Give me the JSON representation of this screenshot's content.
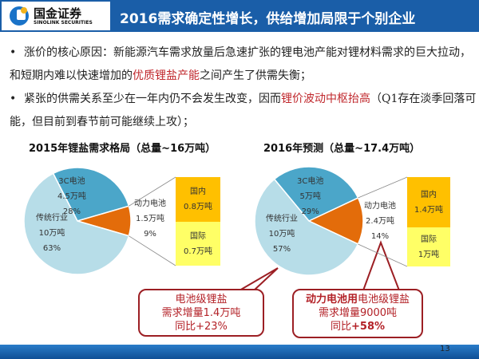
{
  "header": {
    "logo_cn": "国金证券",
    "logo_en": "SINOLINK SECURITIES",
    "title": "2016需求确定性增长，供给增加局限于个别企业"
  },
  "bullets": [
    {
      "pre": "涨价的核心原因：新能源汽车需求放量后急速扩张的锂电池产能对锂材料需求的巨大拉动，和短期内难以快速增加的",
      "hl": "优质锂盐产能",
      "post": "之间产生了供需失衡；"
    },
    {
      "pre": "紧张的供需关系至少在一年内仍不会发生改变，因而",
      "hl": "锂价波动中枢抬高",
      "post": "（Q1存在淡季回落可能，但目前到春节前可能继续上攻）；"
    }
  ],
  "chart_data": [
    {
      "type": "pie",
      "title": "2015年锂盐需求格局（总量~16万吨）",
      "slices": [
        {
          "name": "3C电池",
          "amount": "4.5万吨",
          "pct": "28%",
          "value": 28,
          "color": "#4ba6c9"
        },
        {
          "name": "动力电池",
          "amount": "1.5万吨",
          "pct": "9%",
          "value": 9,
          "color": "#e36c0a"
        },
        {
          "name": "传统行业",
          "amount": "10万吨",
          "pct": "63%",
          "value": 63,
          "color": "#b7dde8"
        }
      ],
      "breakdown": [
        {
          "name": "国内",
          "amount": "0.8万吨",
          "color": "#ffc000"
        },
        {
          "name": "国际",
          "amount": "0.7万吨",
          "color": "#ffff66"
        }
      ]
    },
    {
      "type": "pie",
      "title": "2016年预测（总量~17.4万吨）",
      "slices": [
        {
          "name": "3C电池",
          "amount": "5万吨",
          "pct": "29%",
          "value": 29,
          "color": "#4ba6c9"
        },
        {
          "name": "动力电池",
          "amount": "2.4万吨",
          "pct": "14%",
          "value": 14,
          "color": "#e36c0a"
        },
        {
          "name": "传统行业",
          "amount": "10万吨",
          "pct": "57%",
          "value": 57,
          "color": "#b7dde8"
        }
      ],
      "breakdown": [
        {
          "name": "国内",
          "amount": "1.4万吨",
          "color": "#ffc000"
        },
        {
          "name": "国际",
          "amount": "1万吨",
          "color": "#ffff66"
        }
      ]
    }
  ],
  "callouts": [
    {
      "line1": "电池级锂盐",
      "line2": "需求增量1.4万吨",
      "line3": "同比+23%"
    },
    {
      "line1_bold": "动力电池用",
      "line1": "电池级锂盐",
      "line2": "需求增量9000吨",
      "line3_pre": "同比",
      "line3_bold": "+58%"
    }
  ],
  "footer": {
    "page": "13"
  }
}
